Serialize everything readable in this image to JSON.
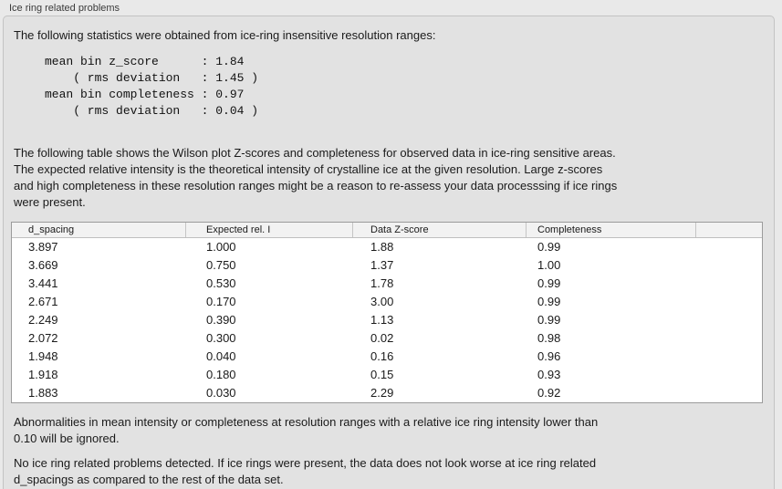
{
  "panel": {
    "title": "Ice ring related problems"
  },
  "intro": "The following statistics were obtained from ice-ring insensitive resolution ranges:",
  "stats_block": "mean bin z_score      : 1.84\n    ( rms deviation   : 1.45 )\nmean bin completeness : 0.97\n    ( rms deviation   : 0.04 )",
  "stats": {
    "mean_bin_z_score": "1.84",
    "z_score_rms_deviation": "1.45",
    "mean_bin_completeness": "0.97",
    "completeness_rms_deviation": "0.04"
  },
  "table_description": "The following table shows the Wilson plot Z-scores and completeness for observed data in ice-ring sensitive areas.\nThe expected relative intensity is the theoretical intensity of crystalline ice at the given resolution. Large z-scores\nand high completeness in these resolution ranges might be a reason to re-assess your data processsing if ice rings\nwere present.",
  "table": {
    "columns": [
      "d_spacing",
      "Expected rel. I",
      "Data Z-score",
      "Completeness"
    ],
    "rows": [
      [
        "3.897",
        "1.000",
        "1.88",
        "0.99"
      ],
      [
        "3.669",
        "0.750",
        "1.37",
        "1.00"
      ],
      [
        "3.441",
        "0.530",
        "1.78",
        "0.99"
      ],
      [
        "2.671",
        "0.170",
        "3.00",
        "0.99"
      ],
      [
        "2.249",
        "0.390",
        "1.13",
        "0.99"
      ],
      [
        "2.072",
        "0.300",
        "0.02",
        "0.98"
      ],
      [
        "1.948",
        "0.040",
        "0.16",
        "0.96"
      ],
      [
        "1.918",
        "0.180",
        "0.15",
        "0.93"
      ],
      [
        "1.883",
        "0.030",
        "2.29",
        "0.92"
      ]
    ]
  },
  "abnormalities_note": "Abnormalities in mean intensity or completeness at resolution ranges with a relative ice ring intensity lower than\n0.10 will be ignored.",
  "conclusion": "No ice ring related problems detected. If ice rings were present, the data does not look worse at ice ring related\nd_spacings as compared to the rest of the data set.",
  "colors": {
    "page_background": "#e9e9e9",
    "groupbox_background": "#e2e2e2",
    "groupbox_border": "#c3c3c3",
    "table_background": "#ffffff",
    "table_border": "#9b9b9b",
    "table_header_background": "#f2f2f2",
    "text": "#1a1a1a"
  }
}
